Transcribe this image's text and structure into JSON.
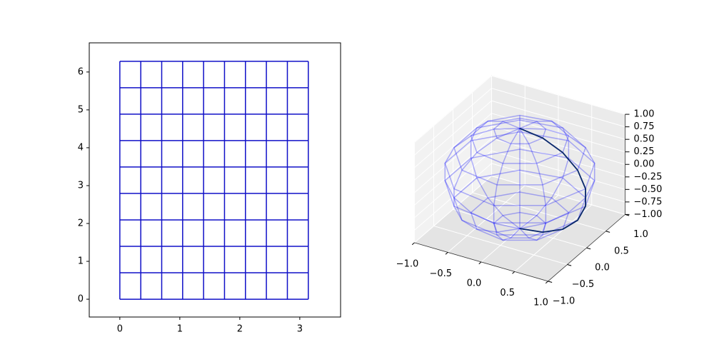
{
  "chart_data": [
    {
      "type": "grid",
      "x": [
        0,
        0.349,
        0.698,
        1.047,
        1.396,
        1.745,
        2.094,
        2.443,
        2.793,
        3.142
      ],
      "y": [
        0,
        0.698,
        1.396,
        2.094,
        2.793,
        3.491,
        4.189,
        4.887,
        5.585,
        6.283
      ],
      "color": "#1010c8",
      "xlim": [
        -0.51,
        3.68
      ],
      "ylim": [
        -0.47,
        6.77
      ],
      "xticks": [
        0,
        1,
        2,
        3
      ],
      "yticks": [
        0,
        1,
        2,
        3,
        4,
        5,
        6
      ]
    },
    {
      "type": "wireframe3d",
      "color": "#0000ff",
      "highlight_color": "#0b2a6b",
      "xlim": [
        -1,
        1
      ],
      "ylim": [
        -1,
        1
      ],
      "zlim": [
        -1,
        1
      ],
      "xticks": [
        {
          "value": -1,
          "label": "−1.0"
        },
        {
          "value": -0.5,
          "label": "−0.5"
        },
        {
          "value": 0,
          "label": "0.0"
        },
        {
          "value": 0.5,
          "label": "0.5"
        },
        {
          "value": 1,
          "label": "1.0"
        }
      ],
      "yticks": [
        {
          "value": -1,
          "label": "−1.0"
        },
        {
          "value": -0.5,
          "label": "−0.5"
        },
        {
          "value": 0,
          "label": "0.0"
        },
        {
          "value": 0.5,
          "label": "0.5"
        },
        {
          "value": 1,
          "label": "1.0"
        }
      ],
      "zticks": [
        {
          "value": -1,
          "label": "−1.00"
        },
        {
          "value": -0.75,
          "label": "−0.75"
        },
        {
          "value": -0.5,
          "label": "−0.50"
        },
        {
          "value": -0.25,
          "label": "−0.25"
        },
        {
          "value": 0,
          "label": "0.00"
        },
        {
          "value": 0.25,
          "label": "0.25"
        },
        {
          "value": 0.5,
          "label": "0.50"
        },
        {
          "value": 0.75,
          "label": "0.75"
        },
        {
          "value": 1,
          "label": "1.00"
        }
      ]
    }
  ]
}
